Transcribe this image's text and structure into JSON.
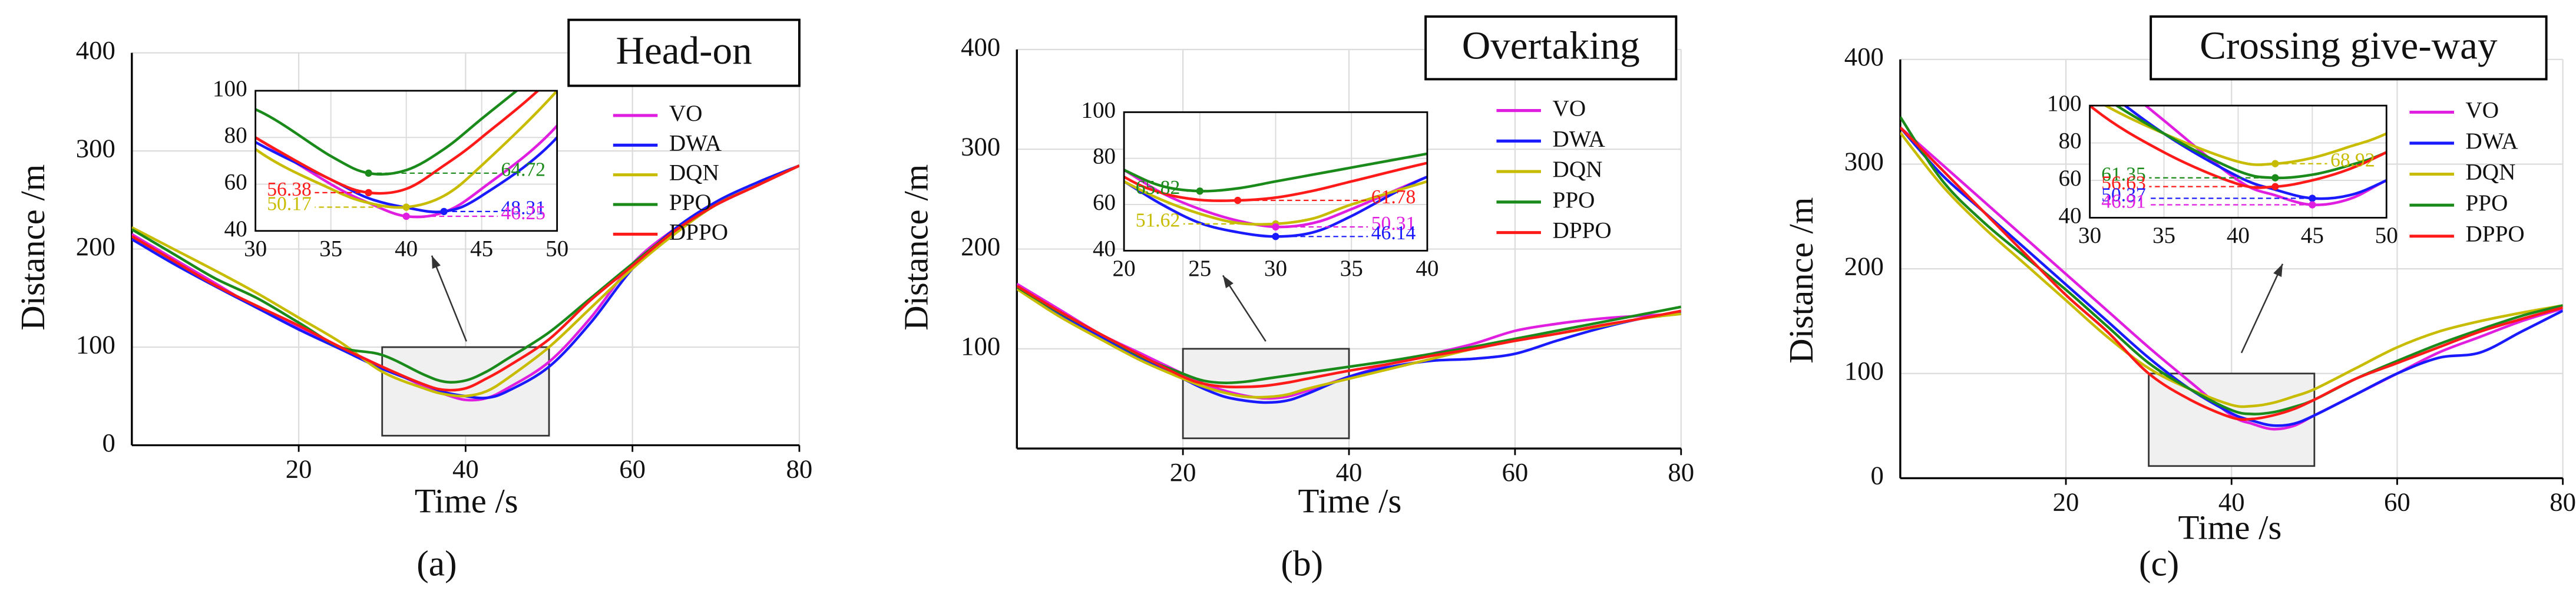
{
  "chart_data": [
    {
      "type": "line",
      "title": "Head-on",
      "panel_label": "(a)",
      "xlabel": "Time /s",
      "ylabel": "Distance /m",
      "xlim": [
        0,
        80
      ],
      "ylim": [
        0,
        400
      ],
      "xticks": [
        20,
        40,
        60,
        80
      ],
      "yticks": [
        0,
        100,
        200,
        300,
        400
      ],
      "grid": true,
      "x": [
        0,
        5,
        10,
        15,
        20,
        25,
        30,
        35,
        37.5,
        40,
        42.5,
        45,
        50,
        55,
        60,
        65,
        70,
        75,
        80
      ],
      "series": [
        {
          "name": "VO",
          "color": "#e01ee0",
          "values": [
            215,
            190,
            165,
            140,
            120,
            100,
            80,
            60,
            52,
            46.25,
            48,
            58,
            85,
            130,
            185,
            220,
            245,
            265,
            285
          ]
        },
        {
          "name": "DWA",
          "color": "#1a1aff",
          "values": [
            210,
            185,
            162,
            140,
            118,
            98,
            78,
            62,
            54,
            50,
            48.31,
            55,
            80,
            125,
            180,
            220,
            248,
            268,
            285
          ]
        },
        {
          "name": "DQN",
          "color": "#c8bc00",
          "values": [
            222,
            200,
            178,
            155,
            130,
            105,
            75,
            58,
            52,
            50.17,
            55,
            68,
            100,
            140,
            180,
            215,
            245,
            265,
            285
          ]
        },
        {
          "name": "PPO",
          "color": "#1a8a1a",
          "values": [
            220,
            195,
            170,
            150,
            125,
            100,
            92,
            72,
            64.72,
            66,
            75,
            88,
            115,
            150,
            185,
            218,
            245,
            265,
            285
          ]
        },
        {
          "name": "DPPO",
          "color": "#ff1a1a",
          "values": [
            213,
            188,
            163,
            142,
            122,
            100,
            80,
            62,
            56.38,
            58,
            68,
            80,
            108,
            148,
            183,
            218,
            245,
            265,
            285
          ]
        }
      ],
      "inset": {
        "xlim": [
          30,
          50
        ],
        "ylim": [
          40,
          100
        ],
        "xticks": [
          30,
          35,
          40,
          45,
          50
        ],
        "yticks": [
          40,
          60,
          80,
          100
        ],
        "annotations": [
          {
            "x": 37.5,
            "value": 64.72,
            "color": "#1a8a1a"
          },
          {
            "x": 37.5,
            "value": 56.38,
            "color": "#ff1a1a"
          },
          {
            "x": 40,
            "value": 50.17,
            "color": "#c8bc00"
          },
          {
            "x": 42.5,
            "value": 48.31,
            "color": "#1a1aff"
          },
          {
            "x": 40,
            "value": 46.25,
            "color": "#e01ee0"
          }
        ]
      }
    },
    {
      "type": "line",
      "title": "Overtaking",
      "panel_label": "(b)",
      "xlabel": "Time /s",
      "ylabel": "Distance /m",
      "xlim": [
        0,
        80
      ],
      "ylim": [
        0,
        400
      ],
      "xticks": [
        20,
        40,
        60,
        80
      ],
      "yticks": [
        100,
        200,
        300,
        400
      ],
      "grid": true,
      "x": [
        0,
        5,
        10,
        15,
        20,
        22.5,
        25,
        27.5,
        30,
        32.5,
        35,
        40,
        45,
        50,
        55,
        60,
        65,
        70,
        75,
        80
      ],
      "series": [
        {
          "name": "VO",
          "color": "#e01ee0",
          "values": [
            165,
            140,
            115,
            95,
            75,
            65,
            58,
            53,
            50.31,
            52,
            58,
            72,
            85,
            95,
            105,
            118,
            125,
            130,
            133,
            135
          ]
        },
        {
          "name": "DWA",
          "color": "#1a1aff",
          "values": [
            160,
            135,
            112,
            90,
            70,
            60,
            52,
            48,
            46.14,
            48,
            55,
            72,
            82,
            88,
            90,
            95,
            108,
            120,
            130,
            137
          ]
        },
        {
          "name": "DQN",
          "color": "#c8bc00",
          "values": [
            160,
            133,
            110,
            88,
            70,
            62,
            56,
            52,
            51.62,
            54,
            60,
            70,
            80,
            90,
            100,
            108,
            115,
            122,
            130,
            135
          ]
        },
        {
          "name": "PPO",
          "color": "#1a8a1a",
          "values": [
            162,
            137,
            115,
            92,
            75,
            68,
            65.82,
            67,
            70,
            73,
            76,
            82,
            88,
            95,
            102,
            110,
            118,
            126,
            134,
            142
          ]
        },
        {
          "name": "DPPO",
          "color": "#ff1a1a",
          "values": [
            163,
            138,
            115,
            93,
            72,
            65,
            62,
            61.78,
            63,
            66,
            70,
            78,
            85,
            93,
            100,
            108,
            115,
            123,
            130,
            138
          ]
        }
      ],
      "inset": {
        "xlim": [
          20,
          40
        ],
        "ylim": [
          40,
          100
        ],
        "xticks": [
          20,
          25,
          30,
          35,
          40
        ],
        "yticks": [
          40,
          60,
          80,
          100
        ],
        "annotations": [
          {
            "x": 25,
            "value": 65.82,
            "color": "#1a8a1a"
          },
          {
            "x": 27.5,
            "value": 61.78,
            "color": "#ff1a1a"
          },
          {
            "x": 30,
            "value": 51.62,
            "color": "#c8bc00"
          },
          {
            "x": 30,
            "value": 50.31,
            "color": "#e01ee0"
          },
          {
            "x": 30,
            "value": 46.14,
            "color": "#1a1aff"
          }
        ]
      }
    },
    {
      "type": "line",
      "title": "Crossing give-way",
      "panel_label": "(c)",
      "xlabel": "Time /s",
      "ylabel": "Distance /m",
      "xlim": [
        0,
        80
      ],
      "ylim": [
        0,
        400
      ],
      "xticks": [
        20,
        40,
        60,
        80
      ],
      "yticks": [
        0,
        100,
        200,
        300,
        400
      ],
      "grid": true,
      "x": [
        0,
        5,
        10,
        15,
        20,
        25,
        30,
        35,
        40,
        42.5,
        45,
        47.5,
        50,
        55,
        60,
        65,
        70,
        75,
        80
      ],
      "series": [
        {
          "name": "VO",
          "color": "#e01ee0",
          "values": [
            335,
            300,
            265,
            230,
            195,
            160,
            125,
            92,
            60,
            52,
            46.91,
            50,
            60,
            80,
            100,
            120,
            135,
            150,
            162
          ]
        },
        {
          "name": "DWA",
          "color": "#1a1aff",
          "values": [
            335,
            290,
            255,
            220,
            185,
            150,
            115,
            85,
            62,
            55,
            50.37,
            52,
            60,
            80,
            100,
            115,
            120,
            140,
            160
          ]
        },
        {
          "name": "DQN",
          "color": "#c8bc00",
          "values": [
            330,
            280,
            240,
            205,
            170,
            135,
            105,
            85,
            70,
            68.92,
            72,
            78,
            85,
            105,
            125,
            140,
            150,
            158,
            165
          ]
        },
        {
          "name": "PPO",
          "color": "#1a8a1a",
          "values": [
            345,
            285,
            245,
            212,
            180,
            145,
            110,
            85,
            65,
            61.35,
            63,
            68,
            75,
            95,
            112,
            128,
            142,
            155,
            165
          ]
        },
        {
          "name": "DPPO",
          "color": "#ff1a1a",
          "values": [
            335,
            295,
            255,
            215,
            175,
            140,
            100,
            75,
            58,
            56.63,
            60,
            66,
            75,
            95,
            110,
            125,
            140,
            152,
            163
          ]
        }
      ],
      "inset": {
        "xlim": [
          30,
          50
        ],
        "ylim": [
          40,
          100
        ],
        "xticks": [
          30,
          35,
          40,
          45,
          50
        ],
        "yticks": [
          40,
          60,
          80,
          100
        ],
        "annotations": [
          {
            "x": 42.5,
            "value": 68.92,
            "color": "#c8bc00"
          },
          {
            "x": 42.5,
            "value": 61.35,
            "color": "#1a8a1a"
          },
          {
            "x": 42.5,
            "value": 56.63,
            "color": "#ff1a1a"
          },
          {
            "x": 45,
            "value": 50.37,
            "color": "#1a1aff"
          },
          {
            "x": 45,
            "value": 46.91,
            "color": "#e01ee0"
          }
        ]
      }
    }
  ]
}
